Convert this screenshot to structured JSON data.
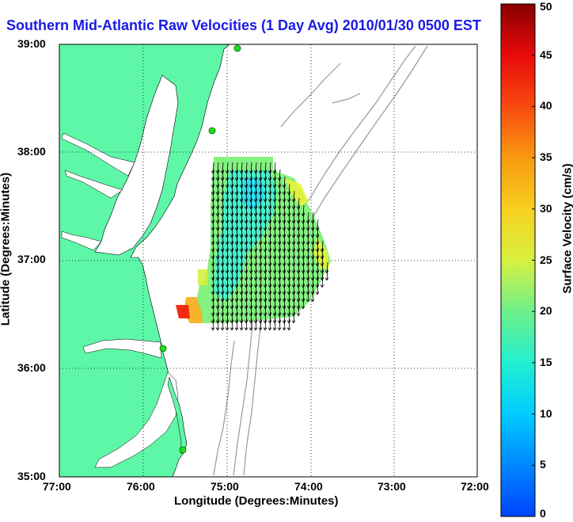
{
  "title": "Southern Mid-Atlantic Raw Velocities (1 Day Avg) 2010/01/30 0500 EST",
  "xlabel": "Longitude (Degrees:Minutes)",
  "ylabel": "Latitude (Degrees:Minutes)",
  "colorbar": {
    "label": "Surface Velocity (cm/s)",
    "ticks": [
      "0",
      "5",
      "10",
      "15",
      "20",
      "25",
      "30",
      "35",
      "40",
      "45",
      "50"
    ],
    "range": [
      0,
      50
    ]
  },
  "map": {
    "lon_ticks": [
      "77:00",
      "76:00",
      "75:00",
      "74:00",
      "73:00",
      "72:00"
    ],
    "lat_ticks": [
      "39:00",
      "38:00",
      "37:00",
      "36:00",
      "35:00"
    ],
    "lon_range": [
      -77,
      -72
    ],
    "lat_range": [
      35,
      39
    ],
    "land_color": "#5ef7a8",
    "bathymetry_color": "#999999",
    "grid": "dotted",
    "station_color": "#22dd22"
  }
}
